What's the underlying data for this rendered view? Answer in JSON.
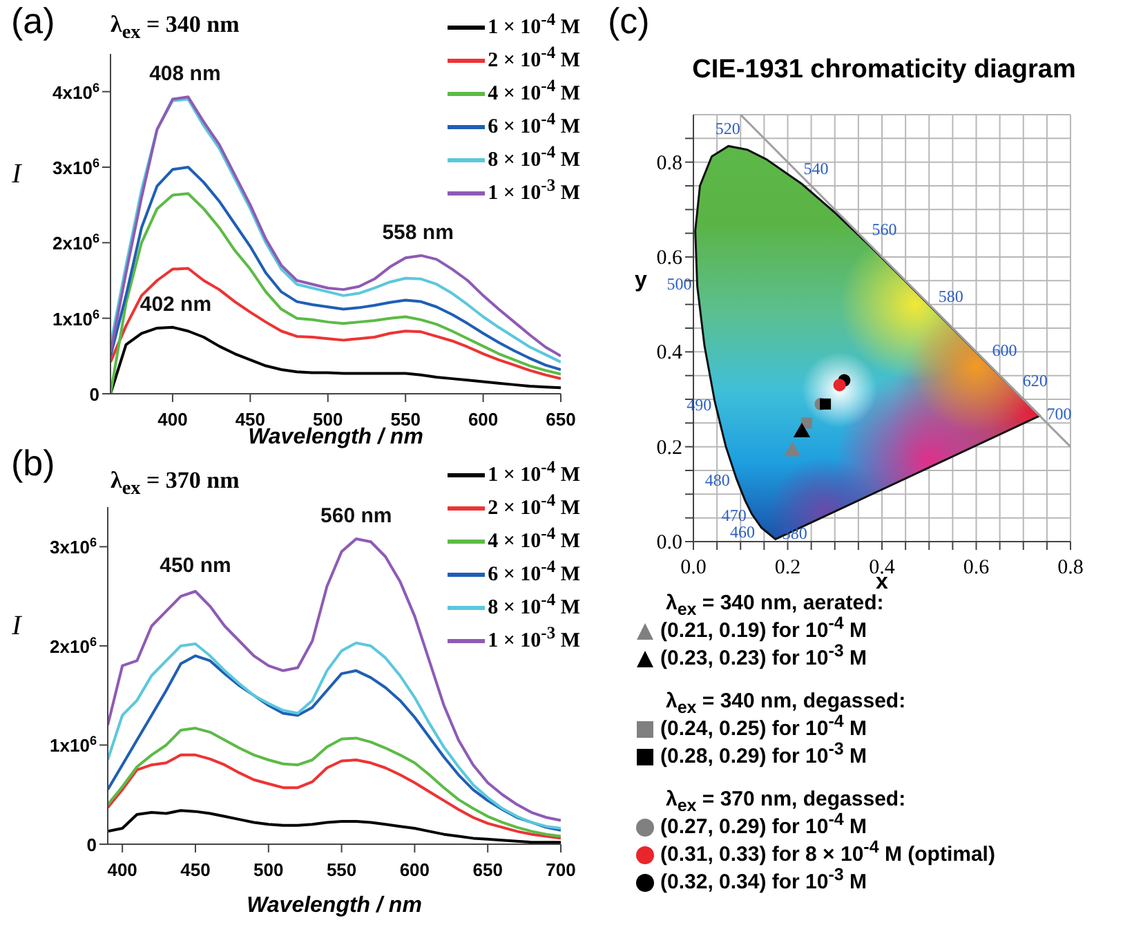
{
  "chart_data": [
    {
      "type": "line",
      "xlabel": "Wavelength / nm",
      "ylabel": "I",
      "xlim": [
        360,
        650
      ],
      "xticks": [
        400,
        450,
        500,
        550,
        600,
        650
      ],
      "ylim": [
        0,
        4500000
      ],
      "yticks": [
        0,
        {
          "value": 1000000,
          "label": "1x10$^{6}$"
        },
        {
          "value": 2000000,
          "label": "2x10$^{6}$"
        },
        {
          "value": 3000000,
          "label": "3x10$^{6}$"
        },
        {
          "value": 4000000,
          "label": "4x10$^{6}$"
        }
      ],
      "legend": "top right",
      "marker": "none",
      "annotations": [
        "(a)",
        "λ$_{ex}$ = 340 nm",
        {
          "text": "408 nm",
          "x": 408,
          "y": 3930000
        },
        {
          "text": "558 nm",
          "x": 558,
          "y": 1830000
        },
        {
          "text": "402 nm",
          "x": 402,
          "y": 880000
        }
      ],
      "x": [
        360,
        370,
        380,
        390,
        400,
        410,
        420,
        430,
        440,
        450,
        460,
        470,
        480,
        490,
        500,
        510,
        520,
        530,
        540,
        550,
        560,
        570,
        580,
        590,
        600,
        610,
        620,
        630,
        640,
        650
      ],
      "series": [
        {
          "name": "1 × 10$^{-4}$ M",
          "color": "#000000",
          "values": [
            0,
            650000,
            800000,
            870000,
            880000,
            830000,
            750000,
            630000,
            530000,
            450000,
            370000,
            320000,
            290000,
            280000,
            280000,
            270000,
            270000,
            270000,
            270000,
            270000,
            250000,
            220000,
            200000,
            180000,
            160000,
            140000,
            120000,
            100000,
            90000,
            80000
          ]
        },
        {
          "name": "2 × 10$^{-4}$ M",
          "color": "#ee3333",
          "values": [
            420000,
            900000,
            1300000,
            1500000,
            1650000,
            1660000,
            1500000,
            1380000,
            1220000,
            1080000,
            950000,
            830000,
            760000,
            750000,
            730000,
            710000,
            730000,
            750000,
            800000,
            830000,
            820000,
            760000,
            700000,
            620000,
            530000,
            450000,
            380000,
            310000,
            250000,
            200000
          ]
        },
        {
          "name": "4 × 10$^{-4}$ M",
          "color": "#5cbb46",
          "values": [
            0,
            1200000,
            2000000,
            2450000,
            2630000,
            2650000,
            2450000,
            2200000,
            1900000,
            1650000,
            1350000,
            1120000,
            1000000,
            980000,
            950000,
            930000,
            950000,
            970000,
            1000000,
            1020000,
            980000,
            920000,
            830000,
            730000,
            630000,
            530000,
            450000,
            370000,
            310000,
            260000
          ]
        },
        {
          "name": "6 × 10$^{-4}$ M",
          "color": "#1f5fb5",
          "values": [
            500000,
            1300000,
            2200000,
            2750000,
            2970000,
            3000000,
            2800000,
            2550000,
            2250000,
            1950000,
            1600000,
            1350000,
            1220000,
            1180000,
            1150000,
            1120000,
            1140000,
            1170000,
            1210000,
            1240000,
            1220000,
            1150000,
            1050000,
            930000,
            800000,
            680000,
            570000,
            470000,
            380000,
            320000
          ]
        },
        {
          "name": "8 × 10$^{-4}$ M",
          "color": "#5bc8dc",
          "values": [
            650000,
            1700000,
            2700000,
            3500000,
            3880000,
            3900000,
            3550000,
            3250000,
            2850000,
            2450000,
            2000000,
            1650000,
            1450000,
            1400000,
            1350000,
            1300000,
            1330000,
            1400000,
            1480000,
            1530000,
            1520000,
            1450000,
            1330000,
            1180000,
            1020000,
            880000,
            750000,
            620000,
            520000,
            420000
          ]
        },
        {
          "name": "1 × 10$^{-3}$ M",
          "color": "#8e5bb5",
          "values": [
            550000,
            1600000,
            2600000,
            3500000,
            3900000,
            3930000,
            3600000,
            3300000,
            2900000,
            2500000,
            2050000,
            1700000,
            1500000,
            1450000,
            1400000,
            1380000,
            1420000,
            1520000,
            1680000,
            1800000,
            1830000,
            1780000,
            1650000,
            1500000,
            1300000,
            1120000,
            950000,
            780000,
            620000,
            500000
          ]
        }
      ]
    },
    {
      "type": "line",
      "xlabel": "Wavelength / nm",
      "ylabel": "I",
      "xlim": [
        390,
        700
      ],
      "xticks": [
        400,
        450,
        500,
        550,
        600,
        650,
        700
      ],
      "ylim": [
        0,
        3400000
      ],
      "yticks": [
        0,
        {
          "value": 1000000,
          "label": "1x10$^{6}$"
        },
        {
          "value": 2000000,
          "label": "2x10$^{6}$"
        },
        {
          "value": 3000000,
          "label": "3x10$^{6}$"
        }
      ],
      "legend": "top right",
      "marker": "none",
      "annotations": [
        "(b)",
        "λ$_{ex}$ = 370 nm",
        {
          "text": "450 nm",
          "x": 450,
          "y": 2580000
        },
        {
          "text": "560 nm",
          "x": 560,
          "y": 3080000
        }
      ],
      "x": [
        390,
        400,
        410,
        420,
        430,
        440,
        450,
        460,
        470,
        480,
        490,
        500,
        510,
        520,
        530,
        540,
        550,
        560,
        570,
        580,
        590,
        600,
        610,
        620,
        630,
        640,
        650,
        660,
        670,
        680,
        690,
        700
      ],
      "series": [
        {
          "name": "1 × 10$^{-4}$ M",
          "color": "#000000",
          "values": [
            130000,
            160000,
            300000,
            320000,
            310000,
            340000,
            330000,
            310000,
            280000,
            250000,
            220000,
            200000,
            190000,
            190000,
            200000,
            220000,
            230000,
            230000,
            220000,
            200000,
            180000,
            160000,
            130000,
            100000,
            80000,
            60000,
            50000,
            40000,
            30000,
            20000,
            20000,
            20000
          ]
        },
        {
          "name": "2 × 10$^{-4}$ M",
          "color": "#ee3333",
          "values": [
            370000,
            550000,
            750000,
            800000,
            820000,
            900000,
            900000,
            860000,
            800000,
            720000,
            650000,
            610000,
            570000,
            570000,
            630000,
            770000,
            840000,
            850000,
            820000,
            770000,
            700000,
            620000,
            530000,
            440000,
            350000,
            270000,
            210000,
            170000,
            130000,
            100000,
            80000,
            60000
          ]
        },
        {
          "name": "4 × 10$^{-4}$ M",
          "color": "#5cbb46",
          "values": [
            400000,
            580000,
            780000,
            900000,
            1000000,
            1150000,
            1170000,
            1130000,
            1050000,
            970000,
            900000,
            850000,
            810000,
            800000,
            850000,
            980000,
            1060000,
            1070000,
            1030000,
            970000,
            900000,
            820000,
            700000,
            570000,
            450000,
            360000,
            280000,
            220000,
            170000,
            130000,
            100000,
            80000
          ]
        },
        {
          "name": "6 × 10$^{-4}$ M",
          "color": "#1f5fb5",
          "values": [
            550000,
            800000,
            1050000,
            1300000,
            1550000,
            1820000,
            1900000,
            1850000,
            1720000,
            1600000,
            1500000,
            1400000,
            1320000,
            1300000,
            1380000,
            1550000,
            1720000,
            1750000,
            1680000,
            1580000,
            1450000,
            1280000,
            1080000,
            880000,
            700000,
            550000,
            440000,
            350000,
            270000,
            220000,
            170000,
            140000
          ]
        },
        {
          "name": "8 × 10$^{-4}$ M",
          "color": "#5bc8dc",
          "values": [
            850000,
            1300000,
            1450000,
            1700000,
            1850000,
            2000000,
            2020000,
            1900000,
            1750000,
            1620000,
            1500000,
            1420000,
            1350000,
            1320000,
            1450000,
            1750000,
            1950000,
            2030000,
            2000000,
            1880000,
            1700000,
            1480000,
            1220000,
            980000,
            780000,
            600000,
            470000,
            360000,
            280000,
            220000,
            180000,
            160000
          ]
        },
        {
          "name": "1 × 10$^{-3}$ M",
          "color": "#8e5bb5",
          "values": [
            1200000,
            1800000,
            1850000,
            2200000,
            2350000,
            2500000,
            2550000,
            2400000,
            2200000,
            2050000,
            1900000,
            1800000,
            1750000,
            1780000,
            2050000,
            2600000,
            2950000,
            3080000,
            3050000,
            2900000,
            2650000,
            2300000,
            1850000,
            1400000,
            1050000,
            800000,
            620000,
            500000,
            400000,
            320000,
            270000,
            240000
          ]
        }
      ]
    },
    {
      "type": "scatter",
      "title": "CIE-1931 chromaticity diagram",
      "xlabel": "x",
      "ylabel": "y",
      "xlim": [
        0,
        0.8
      ],
      "ylim": [
        0,
        0.9
      ],
      "xticks": [
        {
          "value": 0,
          "label": "0.0"
        },
        {
          "value": 0.05,
          "label": null
        },
        {
          "value": 0.1,
          "label": null
        },
        {
          "value": 0.15,
          "label": null
        },
        {
          "value": 0.2,
          "label": "0.2"
        },
        {
          "value": 0.25,
          "label": null
        },
        {
          "value": 0.3,
          "label": null
        },
        {
          "value": 0.35,
          "label": null
        },
        {
          "value": 0.4,
          "label": "0.4"
        },
        {
          "value": 0.45,
          "label": null
        },
        {
          "value": 0.5,
          "label": null
        },
        {
          "value": 0.55,
          "label": null
        },
        {
          "value": 0.6,
          "label": "0.6"
        },
        {
          "value": 0.65,
          "label": null
        },
        {
          "value": 0.7,
          "label": null
        },
        {
          "value": 0.75,
          "label": null
        },
        {
          "value": 0.8,
          "label": "0.8"
        }
      ],
      "yticks": [
        {
          "value": 0,
          "label": "0.0"
        },
        {
          "value": 0.05,
          "label": null
        },
        {
          "value": 0.1,
          "label": null
        },
        {
          "value": 0.15,
          "label": null
        },
        {
          "value": 0.2,
          "label": "0.2"
        },
        {
          "value": 0.25,
          "label": null
        },
        {
          "value": 0.3,
          "label": null
        },
        {
          "value": 0.35,
          "label": null
        },
        {
          "value": 0.4,
          "label": "0.4"
        },
        {
          "value": 0.45,
          "label": null
        },
        {
          "value": 0.5,
          "label": null
        },
        {
          "value": 0.55,
          "label": null
        },
        {
          "value": 0.6,
          "label": "0.6"
        },
        {
          "value": 0.65,
          "label": null
        },
        {
          "value": 0.7,
          "label": null
        },
        {
          "value": 0.75,
          "label": null
        },
        {
          "value": 0.8,
          "label": "0.8"
        },
        {
          "value": 0.85,
          "label": null
        }
      ],
      "grid": true,
      "legend": "bottom",
      "annotations": [
        "(c)",
        "λ$_{ex}$ = 340 nm, aerated:",
        "λ$_{ex}$ = 340 nm, degassed:",
        "λ$_{ex}$ = 370 nm, degassed:",
        "520",
        "540",
        "560",
        "580",
        "600",
        "620",
        "700",
        "500",
        "490",
        "480",
        "470",
        "460",
        "380"
      ],
      "series": [
        {
          "type": "line",
          "color": "#a0a0a0",
          "x": [
            0.1,
            0.8
          ],
          "values": [
            0.9,
            0.2
          ]
        },
        {
          "name": "(0.21, 0.19) for 10$^{-4}$ M",
          "color": "#808080",
          "marker": "triangle",
          "x": [
            0.21
          ],
          "values": [
            0.19
          ]
        },
        {
          "name": "(0.23, 0.23) for 10$^{-3}$ M",
          "color": "#000000",
          "marker": "triangle",
          "x": [
            0.23
          ],
          "values": [
            0.23
          ]
        },
        {
          "name": "(0.24, 0.25) for 10$^{-4}$ M",
          "color": "#808080",
          "marker": "square",
          "x": [
            0.24
          ],
          "values": [
            0.25
          ]
        },
        {
          "name": "(0.28, 0.29) for 10$^{-3}$ M",
          "color": "#000000",
          "marker": "square",
          "x": [
            0.28
          ],
          "values": [
            0.29
          ]
        },
        {
          "name": "(0.27, 0.29) for 10$^{-4}$ M",
          "color": "#808080",
          "marker": "circle",
          "x": [
            0.27
          ],
          "values": [
            0.29
          ]
        },
        {
          "name": "(0.31, 0.33) for 8 × 10$^{-4}$ M (optimal)",
          "color": "#e8262b",
          "marker": "circle",
          "x": [
            0.31
          ],
          "values": [
            0.33
          ]
        },
        {
          "name": "(0.32, 0.34) for 10$^{-3}$ M",
          "color": "#000000",
          "marker": "circle",
          "x": [
            0.32
          ],
          "values": [
            0.34
          ]
        }
      ]
    }
  ]
}
